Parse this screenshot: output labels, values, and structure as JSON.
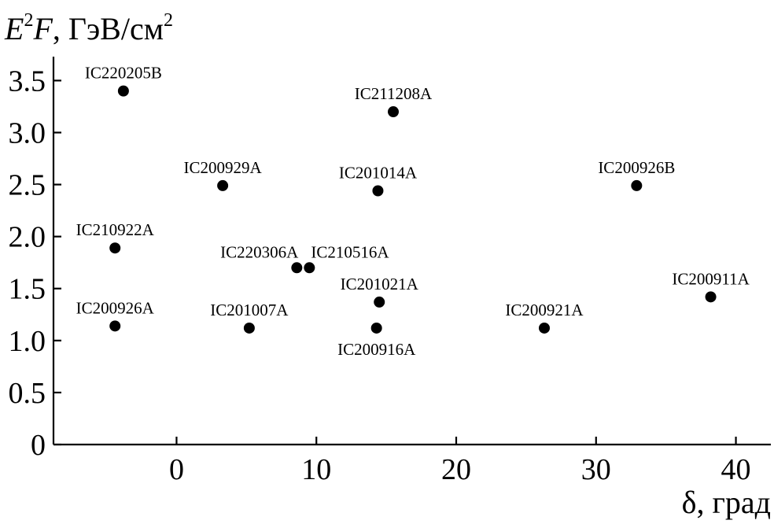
{
  "chart_data": {
    "type": "scatter",
    "ylabel": {
      "base": "E",
      "sup": "2",
      "after": "F",
      "unit": ", ГэВ/см",
      "unit_sup": "2"
    },
    "xlabel": "δ, град",
    "xlim": [
      -8.8,
      42.5
    ],
    "ylim": [
      0,
      3.73
    ],
    "xticks": [
      0,
      10,
      20,
      30,
      40
    ],
    "yticks": [
      0,
      0.5,
      1.0,
      1.5,
      2.0,
      2.5,
      3.0,
      3.5
    ],
    "ytick_labels": [
      "0",
      "0.5",
      "1.0",
      "1.5",
      "2.0",
      "2.5",
      "3.0",
      "3.5"
    ],
    "xtick_labels": [
      "0",
      "10",
      "20",
      "30",
      "40"
    ],
    "points": [
      {
        "name": "IC220205B",
        "x": -3.8,
        "y": 3.4,
        "label_pos": "above"
      },
      {
        "name": "IC211208A",
        "x": 15.5,
        "y": 3.2,
        "label_pos": "above"
      },
      {
        "name": "IC200929A",
        "x": 3.3,
        "y": 2.49,
        "label_pos": "above"
      },
      {
        "name": "IC201014A",
        "x": 14.4,
        "y": 2.44,
        "label_pos": "above"
      },
      {
        "name": "IC200926B",
        "x": 32.9,
        "y": 2.49,
        "label_pos": "above"
      },
      {
        "name": "IC210922A",
        "x": -4.4,
        "y": 1.89,
        "label_pos": "above"
      },
      {
        "name": "IC220306A",
        "x": 8.6,
        "y": 1.7,
        "label_pos": "above-left"
      },
      {
        "name": "IC210516A",
        "x": 9.5,
        "y": 1.7,
        "label_pos": "above-right"
      },
      {
        "name": "IC201021A",
        "x": 14.5,
        "y": 1.37,
        "label_pos": "above"
      },
      {
        "name": "IC200911A",
        "x": 38.2,
        "y": 1.42,
        "label_pos": "above"
      },
      {
        "name": "IC200926A",
        "x": -4.4,
        "y": 1.14,
        "label_pos": "above"
      },
      {
        "name": "IC201007A",
        "x": 5.2,
        "y": 1.12,
        "label_pos": "above"
      },
      {
        "name": "IC200916A",
        "x": 14.3,
        "y": 1.12,
        "label_pos": "below"
      },
      {
        "name": "IC200921A",
        "x": 26.3,
        "y": 1.12,
        "label_pos": "above"
      }
    ]
  }
}
